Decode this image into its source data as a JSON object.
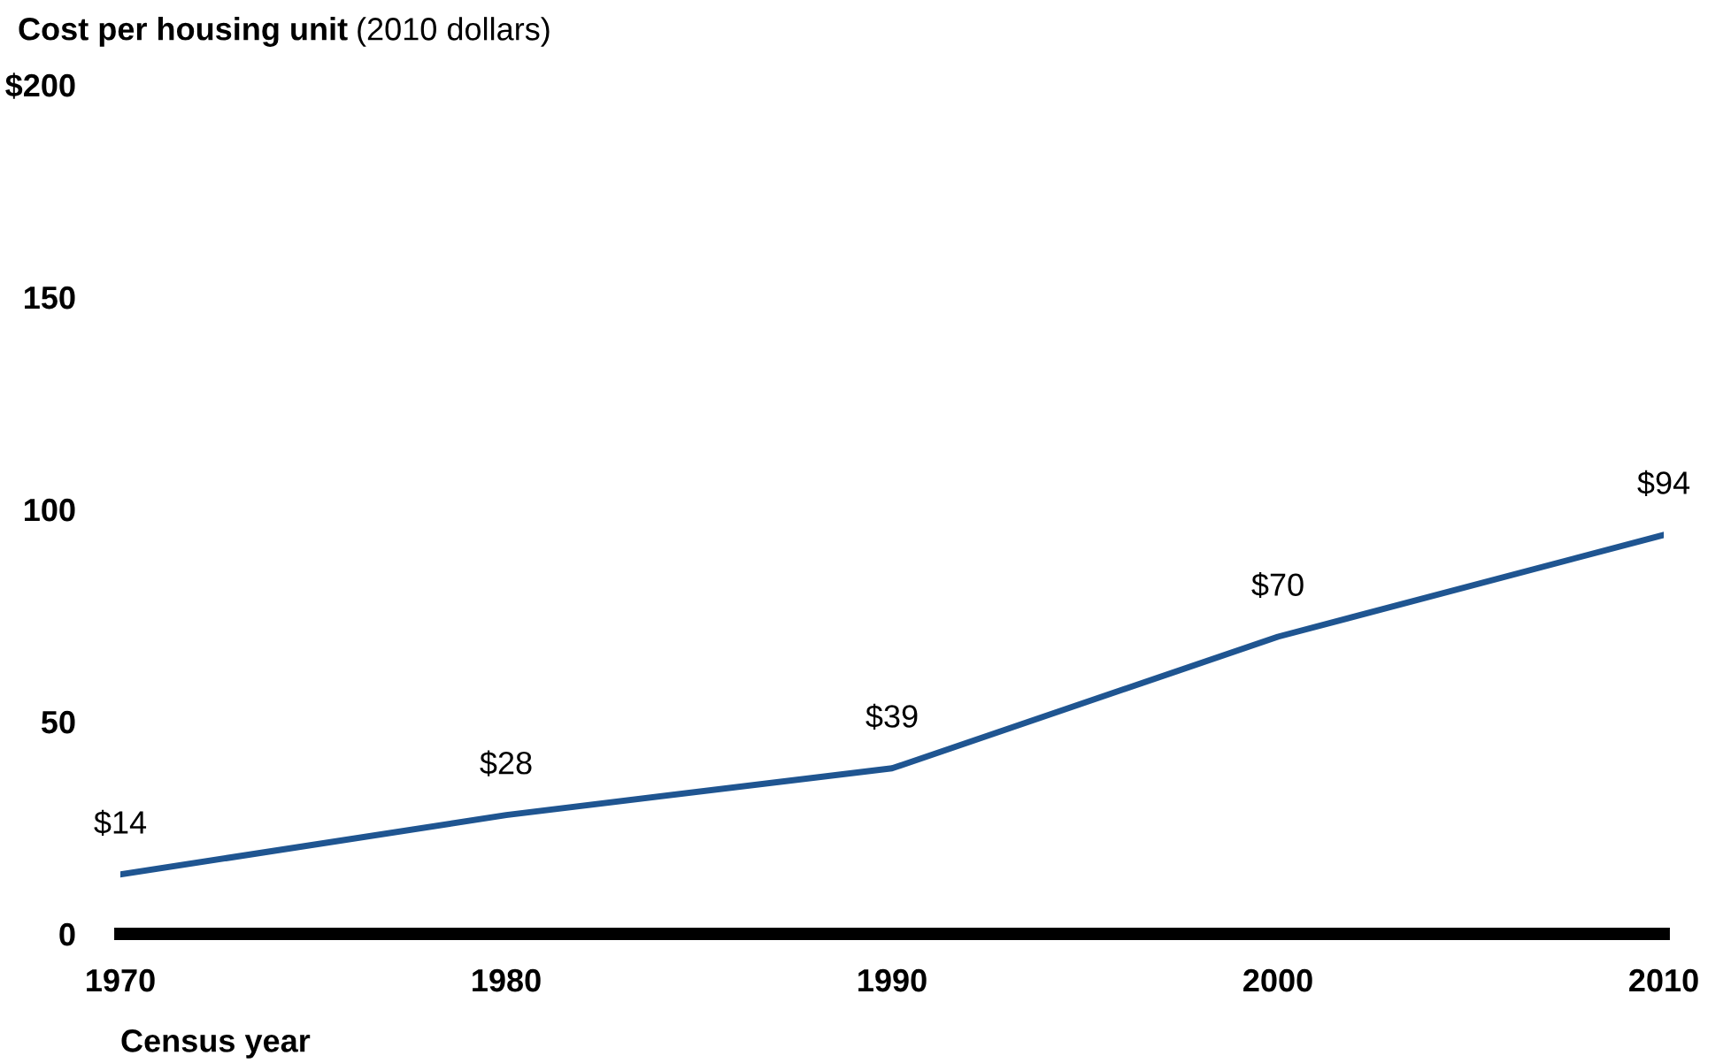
{
  "chart_data": {
    "type": "line",
    "title": "Cost per housing unit",
    "subtitle": "(2010 dollars)",
    "xlabel": "Census year",
    "x": [
      1970,
      1980,
      1990,
      2000,
      2010
    ],
    "series": [
      {
        "color": "#1f5591",
        "values": [
          14,
          28,
          39,
          70,
          94
        ],
        "value_labels": [
          "$14",
          "$28",
          "$39",
          "$70",
          "$94"
        ]
      }
    ],
    "xlim": [
      1970,
      2010
    ],
    "xticks": [
      1970,
      1980,
      1990,
      2000,
      2010
    ],
    "ylim": [
      0,
      200
    ],
    "yticks": [
      0,
      50,
      100,
      150,
      {
        "value": 200,
        "label": "$200"
      }
    ],
    "grid": false,
    "legend": false,
    "marker": "none",
    "line_style": "solid"
  }
}
